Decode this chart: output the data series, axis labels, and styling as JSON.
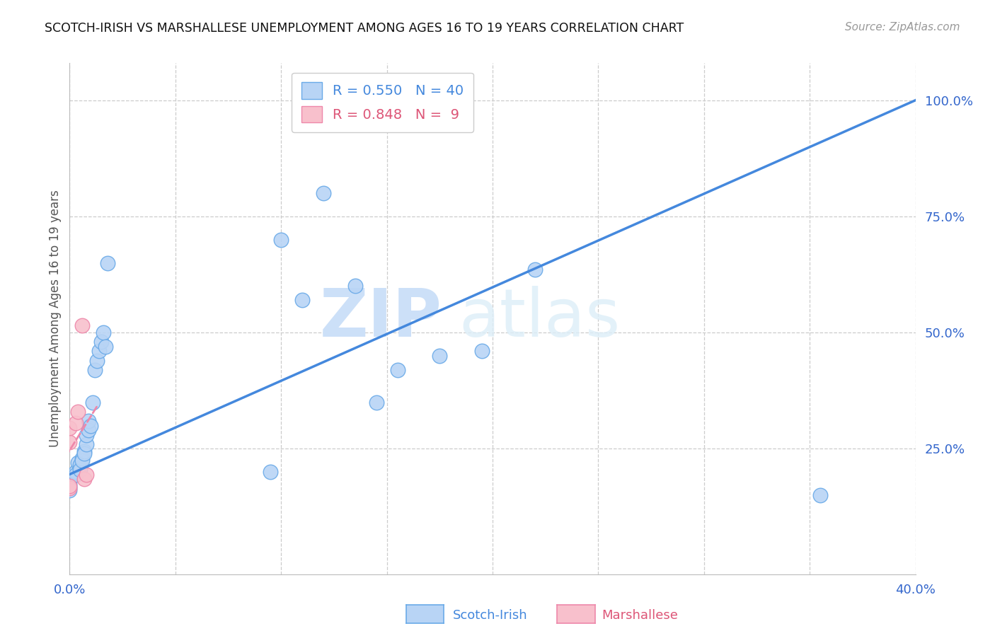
{
  "title": "SCOTCH-IRISH VS MARSHALLESE UNEMPLOYMENT AMONG AGES 16 TO 19 YEARS CORRELATION CHART",
  "source": "Source: ZipAtlas.com",
  "ylabel": "Unemployment Among Ages 16 to 19 years",
  "xlim": [
    0.0,
    0.4
  ],
  "ylim": [
    -0.02,
    1.08
  ],
  "scotch_irish_R": 0.55,
  "scotch_irish_N": 40,
  "marshallese_R": 0.848,
  "marshallese_N": 9,
  "scotch_irish_color": "#b8d4f5",
  "scotch_irish_edge_color": "#6aaae8",
  "scotch_irish_line_color": "#4488dd",
  "marshallese_color": "#f8c0cc",
  "marshallese_edge_color": "#ee88aa",
  "marshallese_line_color": "#dd5577",
  "watermark_zip": "ZIP",
  "watermark_atlas": "atlas",
  "scotch_irish_x": [
    0.0,
    0.0,
    0.0,
    0.0,
    0.0,
    0.0,
    0.003,
    0.003,
    0.004,
    0.005,
    0.005,
    0.005,
    0.006,
    0.006,
    0.007,
    0.007,
    0.008,
    0.008,
    0.009,
    0.009,
    0.01,
    0.011,
    0.012,
    0.013,
    0.014,
    0.015,
    0.016,
    0.017,
    0.018,
    0.095,
    0.1,
    0.11,
    0.12,
    0.135,
    0.145,
    0.155,
    0.175,
    0.195,
    0.22,
    0.355
  ],
  "scotch_irish_y": [
    0.19,
    0.185,
    0.175,
    0.17,
    0.165,
    0.16,
    0.2,
    0.195,
    0.22,
    0.21,
    0.215,
    0.205,
    0.23,
    0.225,
    0.245,
    0.24,
    0.26,
    0.28,
    0.29,
    0.31,
    0.3,
    0.35,
    0.42,
    0.44,
    0.46,
    0.48,
    0.5,
    0.47,
    0.65,
    0.2,
    0.7,
    0.57,
    0.8,
    0.6,
    0.35,
    0.42,
    0.45,
    0.46,
    0.635,
    0.15
  ],
  "marshallese_x": [
    0.0,
    0.0,
    0.0,
    0.0,
    0.003,
    0.004,
    0.006,
    0.007,
    0.008
  ],
  "marshallese_y": [
    0.165,
    0.17,
    0.265,
    0.295,
    0.305,
    0.33,
    0.515,
    0.185,
    0.195
  ],
  "grid_yticks": [
    0.25,
    0.5,
    0.75,
    1.0
  ]
}
